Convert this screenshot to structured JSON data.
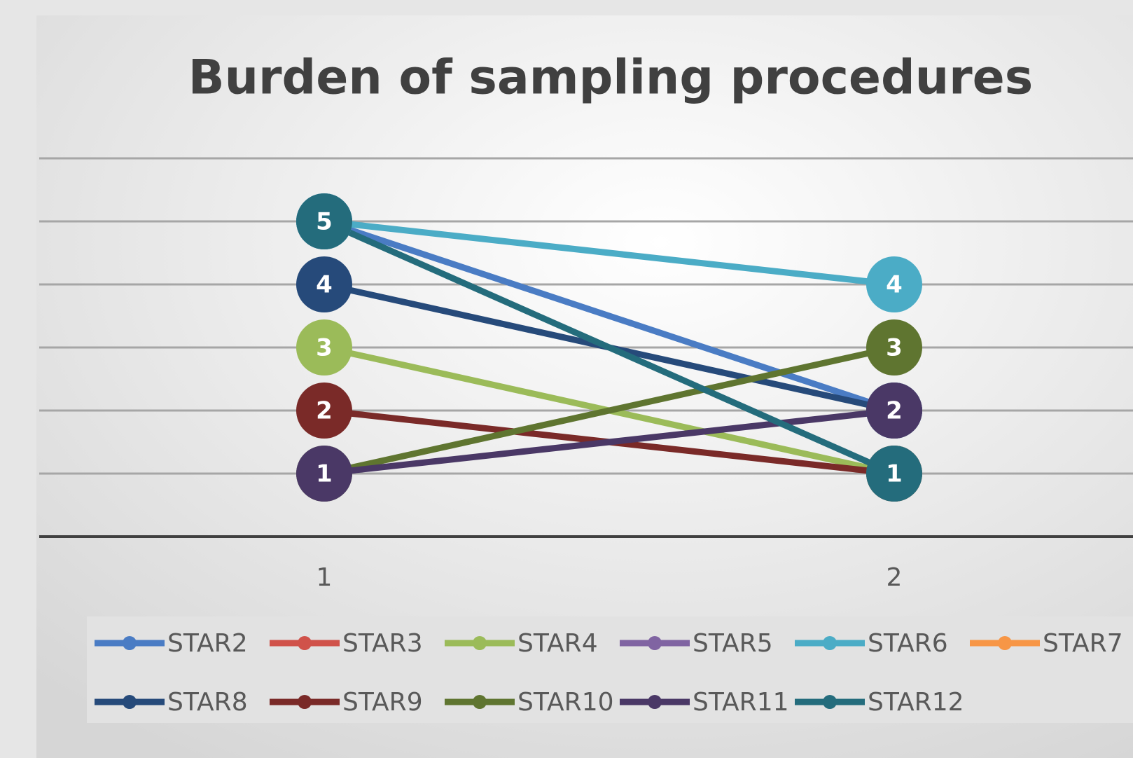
{
  "chart_data": {
    "type": "line",
    "title": "Burden of sampling procedures",
    "categories": [
      "1",
      "2"
    ],
    "ylim": [
      0,
      6
    ],
    "yticks": [
      0,
      1,
      2,
      3,
      4,
      5,
      6
    ],
    "grid": true,
    "legend": "bottom",
    "series": [
      {
        "name": "STAR2",
        "color": "#4a7cc4",
        "values": [
          5,
          2
        ]
      },
      {
        "name": "STAR3",
        "color": "#d0524a",
        "values": [
          null,
          null
        ]
      },
      {
        "name": "STAR4",
        "color": "#9bbb59",
        "values": [
          3,
          1
        ]
      },
      {
        "name": "STAR5",
        "color": "#8064a2",
        "values": [
          null,
          null
        ]
      },
      {
        "name": "STAR6",
        "color": "#4bacc6",
        "values": [
          5,
          4
        ]
      },
      {
        "name": "STAR7",
        "color": "#f79646",
        "values": [
          null,
          null
        ]
      },
      {
        "name": "STAR8",
        "color": "#264a7a",
        "values": [
          4,
          2
        ]
      },
      {
        "name": "STAR9",
        "color": "#7a2a28",
        "values": [
          2,
          1
        ]
      },
      {
        "name": "STAR10",
        "color": "#5f7530",
        "values": [
          1,
          3
        ]
      },
      {
        "name": "STAR11",
        "color": "#4a3866",
        "values": [
          1,
          2
        ]
      },
      {
        "name": "STAR12",
        "color": "#246c7c",
        "values": [
          5,
          1
        ]
      }
    ]
  }
}
